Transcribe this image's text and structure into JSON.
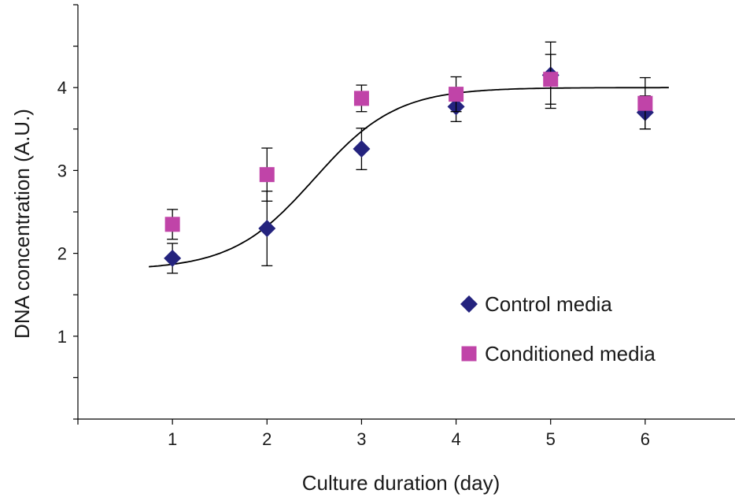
{
  "chart_data": {
    "type": "scatter",
    "title": "",
    "xlabel": "Culture duration (day)",
    "ylabel": "DNA concentration (A.U.)",
    "xlim": [
      0,
      7
    ],
    "ylim": [
      0,
      5
    ],
    "x_ticks": [
      1,
      2,
      3,
      4,
      5,
      6
    ],
    "y_ticks": [
      1,
      2,
      3,
      4
    ],
    "x_tick_labels": [
      "1",
      "2",
      "3",
      "4",
      "5",
      "6"
    ],
    "y_tick_labels": [
      "1",
      "2",
      "3",
      "4"
    ],
    "grid": false,
    "legend_position": "bottom-right",
    "series": [
      {
        "name": "Control media",
        "marker": "diamond",
        "color": "#24237e",
        "x": [
          1,
          2,
          3,
          4,
          5,
          6
        ],
        "y": [
          1.94,
          2.3,
          3.26,
          3.77,
          4.15,
          3.7
        ],
        "error": [
          0.18,
          0.45,
          0.25,
          0.18,
          0.4,
          0.2
        ]
      },
      {
        "name": "Conditioned media",
        "marker": "square",
        "color": "#c044a8",
        "x": [
          1,
          2,
          3,
          4,
          5,
          6
        ],
        "y": [
          2.35,
          2.95,
          3.87,
          3.92,
          4.1,
          3.81
        ],
        "error": [
          0.18,
          0.32,
          0.16,
          0.21,
          0.3,
          0.31
        ]
      }
    ],
    "fit_curve": {
      "type": "sigmoid",
      "color": "#000000",
      "x_range": [
        0.75,
        6.25
      ],
      "lower": 1.8,
      "upper": 4.0,
      "midpoint": 2.5,
      "slope": 2.3
    }
  }
}
